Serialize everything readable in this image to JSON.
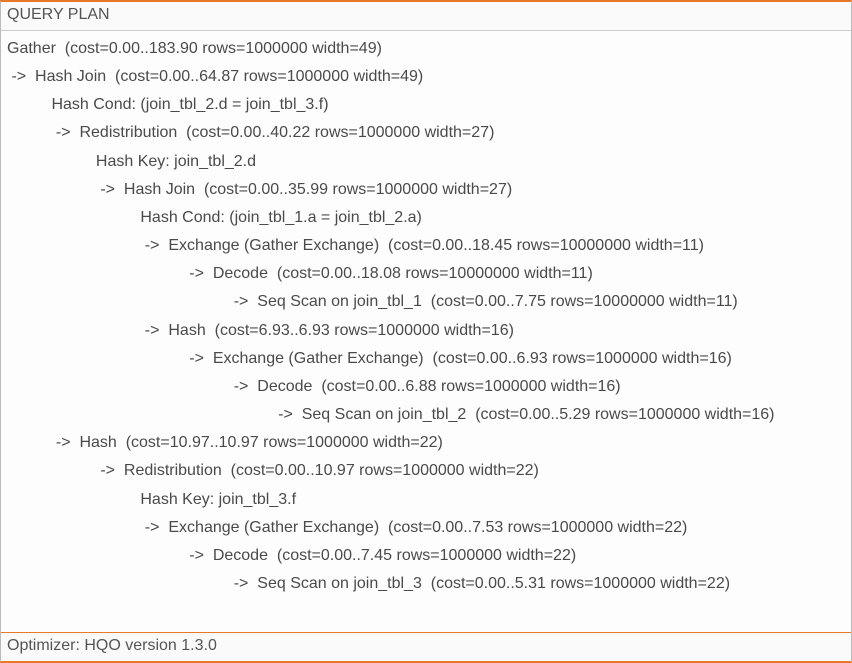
{
  "header": "QUERY PLAN",
  "footer": "Optimizer: HQO version 1.3.0",
  "indent_unit": "     ",
  "arrow": "->  ",
  "plan": [
    {
      "depth": 0,
      "arrow": false,
      "text": "Gather  (cost=0.00..183.90 rows=1000000 width=49)"
    },
    {
      "depth": 0,
      "arrow": true,
      "text": "Hash Join  (cost=0.00..64.87 rows=1000000 width=49)"
    },
    {
      "depth": 2,
      "arrow": false,
      "text": "Hash Cond: (join_tbl_2.d = join_tbl_3.f)"
    },
    {
      "depth": 2,
      "arrow": true,
      "text": "Redistribution  (cost=0.00..40.22 rows=1000000 width=27)"
    },
    {
      "depth": 4,
      "arrow": false,
      "text": "Hash Key: join_tbl_2.d"
    },
    {
      "depth": 4,
      "arrow": true,
      "text": "Hash Join  (cost=0.00..35.99 rows=1000000 width=27)"
    },
    {
      "depth": 6,
      "arrow": false,
      "text": "Hash Cond: (join_tbl_1.a = join_tbl_2.a)"
    },
    {
      "depth": 6,
      "arrow": true,
      "text": "Exchange (Gather Exchange)  (cost=0.00..18.45 rows=10000000 width=11)"
    },
    {
      "depth": 8,
      "arrow": true,
      "text": "Decode  (cost=0.00..18.08 rows=10000000 width=11)"
    },
    {
      "depth": 10,
      "arrow": true,
      "text": "Seq Scan on join_tbl_1  (cost=0.00..7.75 rows=10000000 width=11)"
    },
    {
      "depth": 6,
      "arrow": true,
      "text": "Hash  (cost=6.93..6.93 rows=1000000 width=16)"
    },
    {
      "depth": 8,
      "arrow": true,
      "text": "Exchange (Gather Exchange)  (cost=0.00..6.93 rows=1000000 width=16)"
    },
    {
      "depth": 10,
      "arrow": true,
      "text": "Decode  (cost=0.00..6.88 rows=1000000 width=16)"
    },
    {
      "depth": 12,
      "arrow": true,
      "text": "Seq Scan on join_tbl_2  (cost=0.00..5.29 rows=1000000 width=16)"
    },
    {
      "depth": 2,
      "arrow": true,
      "text": "Hash  (cost=10.97..10.97 rows=1000000 width=22)"
    },
    {
      "depth": 4,
      "arrow": true,
      "text": "Redistribution  (cost=0.00..10.97 rows=1000000 width=22)"
    },
    {
      "depth": 6,
      "arrow": false,
      "text": "Hash Key: join_tbl_3.f"
    },
    {
      "depth": 6,
      "arrow": true,
      "text": "Exchange (Gather Exchange)  (cost=0.00..7.53 rows=1000000 width=22)"
    },
    {
      "depth": 8,
      "arrow": true,
      "text": "Decode  (cost=0.00..7.45 rows=1000000 width=22)"
    },
    {
      "depth": 10,
      "arrow": true,
      "text": "Seq Scan on join_tbl_3  (cost=0.00..5.31 rows=1000000 width=22)"
    }
  ]
}
